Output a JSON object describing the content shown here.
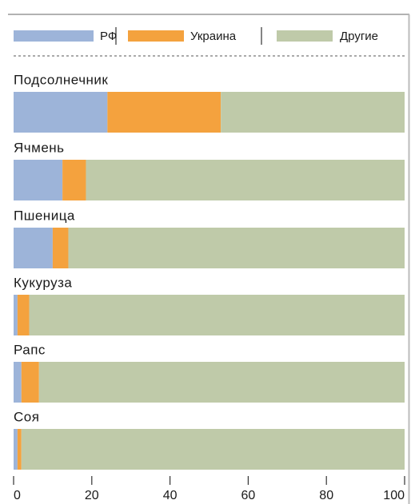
{
  "chart_data": {
    "type": "stacked-bar-horizontal",
    "categories": [
      "Подсолнечник",
      "Ячмень",
      "Пшеница",
      "Кукуруза",
      "Рапс",
      "Соя"
    ],
    "series": [
      {
        "name": "РФ",
        "color": "#9db4d9",
        "values": [
          24,
          12.5,
          10,
          1,
          2,
          1
        ]
      },
      {
        "name": "Украина",
        "color": "#f4a23e",
        "values": [
          29,
          6,
          4,
          3,
          4.5,
          1
        ]
      },
      {
        "name": "Другие",
        "color": "#bfcaa9",
        "values": [
          47,
          81.5,
          86,
          96,
          93.5,
          98
        ]
      }
    ],
    "xlim": [
      0,
      100
    ],
    "xticks": [
      0,
      20,
      40,
      60,
      80,
      100
    ]
  }
}
